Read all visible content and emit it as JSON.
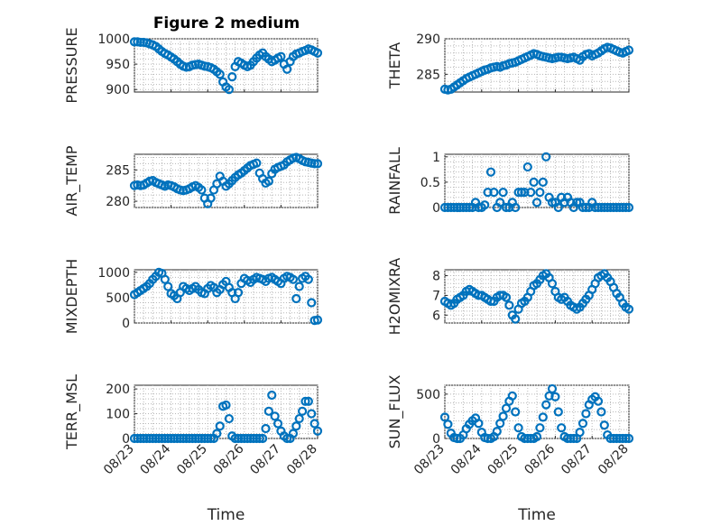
{
  "colors": {
    "marker": "#0072BD",
    "axis": "#262626",
    "background": "#ffffff"
  },
  "figure_title": "Figure 2 medium",
  "chart_data": [
    {
      "id": "pressure",
      "type": "scatter",
      "marker": "circle",
      "ylabel": "PRESSURE",
      "ylim": [
        895,
        1000
      ],
      "yticks": [
        900,
        950,
        1000
      ],
      "xlim": [
        0,
        120
      ],
      "xticks": [
        0,
        24,
        48,
        72,
        96,
        120
      ],
      "xticklabels": [],
      "x": [
        0,
        2,
        4,
        6,
        8,
        10,
        12,
        14,
        16,
        18,
        20,
        22,
        24,
        26,
        28,
        30,
        32,
        34,
        36,
        38,
        40,
        42,
        44,
        46,
        48,
        50,
        52,
        54,
        56,
        58,
        60,
        62,
        64,
        66,
        68,
        70,
        72,
        74,
        76,
        78,
        80,
        82,
        84,
        86,
        88,
        90,
        92,
        94,
        96,
        98,
        100,
        102,
        104,
        106,
        108,
        110,
        112,
        114,
        116,
        118,
        120
      ],
      "y": [
        994,
        994,
        993,
        993,
        992,
        990,
        988,
        985,
        980,
        975,
        971,
        968,
        964,
        960,
        955,
        950,
        946,
        944,
        945,
        948,
        949,
        950,
        948,
        946,
        945,
        943,
        940,
        935,
        930,
        915,
        905,
        900,
        925,
        945,
        955,
        952,
        948,
        945,
        948,
        955,
        962,
        968,
        972,
        965,
        960,
        955,
        958,
        962,
        965,
        950,
        940,
        955,
        965,
        970,
        972,
        975,
        977,
        980,
        978,
        975,
        972
      ]
    },
    {
      "id": "theta",
      "type": "scatter",
      "marker": "circle",
      "ylabel": "THETA",
      "ylim": [
        282.5,
        290
      ],
      "yticks": [
        285,
        290
      ],
      "xlim": [
        0,
        120
      ],
      "xticks": [
        0,
        24,
        48,
        72,
        96,
        120
      ],
      "xticklabels": [],
      "x": [
        0,
        2,
        4,
        6,
        8,
        10,
        12,
        14,
        16,
        18,
        20,
        22,
        24,
        26,
        28,
        30,
        32,
        34,
        36,
        38,
        40,
        42,
        44,
        46,
        48,
        50,
        52,
        54,
        56,
        58,
        60,
        62,
        64,
        66,
        68,
        70,
        72,
        74,
        76,
        78,
        80,
        82,
        84,
        86,
        88,
        90,
        92,
        94,
        96,
        98,
        100,
        102,
        104,
        106,
        108,
        110,
        112,
        114,
        116,
        118,
        120
      ],
      "y": [
        282.9,
        282.8,
        282.9,
        283.2,
        283.5,
        283.8,
        284.1,
        284.4,
        284.6,
        284.8,
        285.0,
        285.2,
        285.4,
        285.6,
        285.7,
        285.9,
        286.0,
        286.1,
        286.0,
        286.2,
        286.3,
        286.5,
        286.6,
        286.7,
        286.9,
        287.1,
        287.3,
        287.5,
        287.7,
        287.9,
        287.8,
        287.6,
        287.5,
        287.4,
        287.3,
        287.2,
        287.3,
        287.4,
        287.4,
        287.3,
        287.2,
        287.3,
        287.4,
        287.2,
        287.0,
        287.5,
        287.8,
        287.9,
        287.6,
        287.8,
        288.0,
        288.3,
        288.6,
        288.8,
        288.7,
        288.5,
        288.3,
        288.1,
        288.0,
        288.2,
        288.4
      ]
    },
    {
      "id": "air_temp",
      "type": "scatter",
      "marker": "circle",
      "ylabel": "AIR_TEMP",
      "ylim": [
        279,
        287.5
      ],
      "yticks": [
        280,
        285
      ],
      "xlim": [
        0,
        120
      ],
      "xticks": [
        0,
        24,
        48,
        72,
        96,
        120
      ],
      "xticklabels": [],
      "x": [
        0,
        2,
        4,
        6,
        8,
        10,
        12,
        14,
        16,
        18,
        20,
        22,
        24,
        26,
        28,
        30,
        32,
        34,
        36,
        38,
        40,
        42,
        44,
        46,
        48,
        50,
        52,
        54,
        56,
        58,
        60,
        62,
        64,
        66,
        68,
        70,
        72,
        74,
        76,
        78,
        80,
        82,
        84,
        86,
        88,
        90,
        92,
        94,
        96,
        98,
        100,
        102,
        104,
        106,
        108,
        110,
        112,
        114,
        116,
        118,
        120
      ],
      "y": [
        282.5,
        282.6,
        282.5,
        282.6,
        282.9,
        283.2,
        283.3,
        283.0,
        282.8,
        282.6,
        282.4,
        282.6,
        282.5,
        282.3,
        282.0,
        281.8,
        281.7,
        281.8,
        282.0,
        282.3,
        282.5,
        282.2,
        281.8,
        280.5,
        279.6,
        280.5,
        281.8,
        282.8,
        284.0,
        283.2,
        282.4,
        282.8,
        283.3,
        283.8,
        284.2,
        284.5,
        284.9,
        285.3,
        285.7,
        285.9,
        286.1,
        284.5,
        283.6,
        282.9,
        283.2,
        284.4,
        285.1,
        285.4,
        285.6,
        285.8,
        286.3,
        286.6,
        286.9,
        287.0,
        286.8,
        286.5,
        286.3,
        286.2,
        286.1,
        286.0,
        286.0
      ]
    },
    {
      "id": "rainfall",
      "type": "scatter",
      "marker": "circle",
      "ylabel": "RAINFALL",
      "ylim": [
        0,
        1.05
      ],
      "yticks": [
        0,
        0.5,
        1
      ],
      "xlim": [
        0,
        120
      ],
      "xticks": [
        0,
        24,
        48,
        72,
        96,
        120
      ],
      "xticklabels": [],
      "x": [
        0,
        2,
        4,
        6,
        8,
        10,
        12,
        14,
        16,
        18,
        20,
        22,
        24,
        26,
        28,
        30,
        32,
        34,
        36,
        38,
        40,
        42,
        44,
        46,
        48,
        50,
        52,
        54,
        56,
        58,
        60,
        62,
        64,
        66,
        68,
        70,
        72,
        74,
        76,
        78,
        80,
        82,
        84,
        86,
        88,
        90,
        92,
        94,
        96,
        98,
        100,
        102,
        104,
        106,
        108,
        110,
        112,
        114,
        116,
        118,
        120
      ],
      "y": [
        0,
        0,
        0,
        0,
        0,
        0,
        0,
        0,
        0,
        0,
        0.1,
        0,
        0,
        0.05,
        0.3,
        0.7,
        0.3,
        0,
        0.1,
        0.3,
        0,
        0,
        0.1,
        0,
        0.3,
        0.3,
        0.3,
        0.8,
        0.3,
        0.5,
        0.1,
        0.3,
        0.5,
        1.0,
        0.2,
        0.1,
        0.1,
        0,
        0.2,
        0.1,
        0.2,
        0.1,
        0,
        0.1,
        0.1,
        0,
        0,
        0,
        0.1,
        0,
        0,
        0,
        0,
        0,
        0,
        0,
        0,
        0,
        0,
        0,
        0
      ]
    },
    {
      "id": "mixdepth",
      "type": "scatter",
      "marker": "circle",
      "ylabel": "MIXDEPTH",
      "ylim": [
        0,
        1050
      ],
      "yticks": [
        0,
        500,
        1000
      ],
      "xlim": [
        0,
        120
      ],
      "xticks": [
        0,
        24,
        48,
        72,
        96,
        120
      ],
      "xticklabels": [],
      "x": [
        0,
        2,
        4,
        6,
        8,
        10,
        12,
        14,
        16,
        18,
        20,
        22,
        24,
        26,
        28,
        30,
        32,
        34,
        36,
        38,
        40,
        42,
        44,
        46,
        48,
        50,
        52,
        54,
        56,
        58,
        60,
        62,
        64,
        66,
        68,
        70,
        72,
        74,
        76,
        78,
        80,
        82,
        84,
        86,
        88,
        90,
        92,
        94,
        96,
        98,
        100,
        102,
        104,
        106,
        108,
        110,
        112,
        114,
        116,
        118,
        120
      ],
      "y": [
        560,
        600,
        640,
        680,
        720,
        780,
        860,
        920,
        1000,
        980,
        860,
        720,
        580,
        540,
        480,
        600,
        720,
        680,
        640,
        680,
        720,
        660,
        600,
        580,
        680,
        740,
        700,
        600,
        660,
        760,
        820,
        700,
        600,
        480,
        600,
        780,
        880,
        840,
        800,
        860,
        900,
        880,
        860,
        820,
        880,
        900,
        860,
        820,
        780,
        880,
        920,
        900,
        860,
        480,
        720,
        880,
        920,
        860,
        400,
        50,
        60
      ]
    },
    {
      "id": "h2omixra",
      "type": "scatter",
      "marker": "circle",
      "ylabel": "H2OMIXRA",
      "ylim": [
        5.6,
        8.3
      ],
      "yticks": [
        6,
        7,
        8
      ],
      "xlim": [
        0,
        120
      ],
      "xticks": [
        0,
        24,
        48,
        72,
        96,
        120
      ],
      "xticklabels": [],
      "x": [
        0,
        2,
        4,
        6,
        8,
        10,
        12,
        14,
        16,
        18,
        20,
        22,
        24,
        26,
        28,
        30,
        32,
        34,
        36,
        38,
        40,
        42,
        44,
        46,
        48,
        50,
        52,
        54,
        56,
        58,
        60,
        62,
        64,
        66,
        68,
        70,
        72,
        74,
        76,
        78,
        80,
        82,
        84,
        86,
        88,
        90,
        92,
        94,
        96,
        98,
        100,
        102,
        104,
        106,
        108,
        110,
        112,
        114,
        116,
        118,
        120
      ],
      "y": [
        6.7,
        6.6,
        6.5,
        6.6,
        6.8,
        6.9,
        7.0,
        7.2,
        7.3,
        7.2,
        7.1,
        7.0,
        7.0,
        6.9,
        6.8,
        6.7,
        6.7,
        6.9,
        7.0,
        7.0,
        6.9,
        6.5,
        6.0,
        5.8,
        6.3,
        6.6,
        6.7,
        6.9,
        7.2,
        7.5,
        7.6,
        7.8,
        8.0,
        8.1,
        7.9,
        7.6,
        7.2,
        6.9,
        6.8,
        6.9,
        6.7,
        6.5,
        6.4,
        6.3,
        6.4,
        6.6,
        6.8,
        7.0,
        7.3,
        7.6,
        7.9,
        8.0,
        8.1,
        7.9,
        7.7,
        7.4,
        7.1,
        6.9,
        6.6,
        6.4,
        6.3
      ]
    },
    {
      "id": "terr_msl",
      "type": "scatter",
      "marker": "circle",
      "ylabel": "TERR_MSL",
      "ylim": [
        0,
        215
      ],
      "yticks": [
        0,
        100,
        200
      ],
      "xlim": [
        0,
        120
      ],
      "xticks": [
        0,
        24,
        48,
        72,
        96,
        120
      ],
      "xticklabels": [
        "08/23",
        "08/24",
        "08/25",
        "08/26",
        "08/27",
        "08/28"
      ],
      "xlabel": "Time",
      "x": [
        0,
        2,
        4,
        6,
        8,
        10,
        12,
        14,
        16,
        18,
        20,
        22,
        24,
        26,
        28,
        30,
        32,
        34,
        36,
        38,
        40,
        42,
        44,
        46,
        48,
        50,
        52,
        54,
        56,
        58,
        60,
        62,
        64,
        66,
        68,
        70,
        72,
        74,
        76,
        78,
        80,
        82,
        84,
        86,
        88,
        90,
        92,
        94,
        96,
        98,
        100,
        102,
        104,
        106,
        108,
        110,
        112,
        114,
        116,
        118,
        120
      ],
      "y": [
        0,
        0,
        0,
        0,
        0,
        0,
        0,
        0,
        0,
        0,
        0,
        0,
        0,
        0,
        0,
        0,
        0,
        0,
        0,
        0,
        0,
        0,
        0,
        0,
        0,
        0,
        0,
        20,
        50,
        130,
        135,
        80,
        10,
        0,
        0,
        0,
        0,
        0,
        0,
        0,
        0,
        0,
        0,
        40,
        110,
        175,
        90,
        60,
        30,
        10,
        0,
        0,
        20,
        50,
        80,
        110,
        150,
        150,
        100,
        60,
        30
      ]
    },
    {
      "id": "sun_flux",
      "type": "scatter",
      "marker": "circle",
      "ylabel": "SUN_FLUX",
      "ylim": [
        0,
        600
      ],
      "yticks": [
        0,
        500
      ],
      "xlim": [
        0,
        120
      ],
      "xticks": [
        0,
        24,
        48,
        72,
        96,
        120
      ],
      "xticklabels": [
        "08/23",
        "08/24",
        "08/25",
        "08/26",
        "08/27",
        "08/28"
      ],
      "xlabel": "Time",
      "x": [
        0,
        2,
        4,
        6,
        8,
        10,
        12,
        14,
        16,
        18,
        20,
        22,
        24,
        26,
        28,
        30,
        32,
        34,
        36,
        38,
        40,
        42,
        44,
        46,
        48,
        50,
        52,
        54,
        56,
        58,
        60,
        62,
        64,
        66,
        68,
        70,
        72,
        74,
        76,
        78,
        80,
        82,
        84,
        86,
        88,
        90,
        92,
        94,
        96,
        98,
        100,
        102,
        104,
        106,
        108,
        110,
        112,
        114,
        116,
        118,
        120
      ],
      "y": [
        240,
        160,
        60,
        10,
        0,
        0,
        40,
        110,
        160,
        200,
        230,
        170,
        70,
        10,
        0,
        0,
        20,
        80,
        170,
        250,
        340,
        420,
        480,
        300,
        120,
        20,
        0,
        0,
        0,
        0,
        20,
        120,
        240,
        380,
        480,
        560,
        470,
        300,
        120,
        20,
        0,
        0,
        0,
        0,
        70,
        170,
        280,
        380,
        440,
        470,
        420,
        300,
        150,
        40,
        0,
        0,
        0,
        0,
        0,
        0,
        0
      ]
    }
  ]
}
